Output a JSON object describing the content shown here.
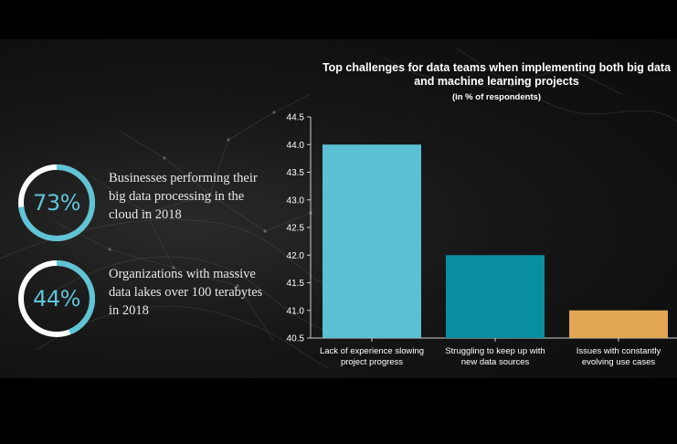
{
  "stats": [
    {
      "value": "73%",
      "fraction": 0.73,
      "description": "Businesses performing their big data processing in the cloud in 2018"
    },
    {
      "value": "44%",
      "fraction": 0.44,
      "description": "Organizations with massive data lakes over 100 terabytes in 2018"
    }
  ],
  "colors": {
    "ring_accent": "#5fc4d6",
    "ring_track": "#ffffff",
    "axis": "#cfcfcf"
  },
  "chart_data": {
    "type": "bar",
    "title": "Top challenges for data teams when implementing both big data and machine learning projects",
    "subtitle": "(in % of respondents)",
    "categories": [
      [
        "Lack of experience slowing",
        "project progress"
      ],
      [
        "Struggling to keep up with",
        "new data sources"
      ],
      [
        "Issues with constantly",
        "evolving use cases"
      ]
    ],
    "values": [
      44.0,
      42.0,
      41.0
    ],
    "bar_colors": [
      "#5cc0d4",
      "#0a8fa0",
      "#e3a654"
    ],
    "ylim": [
      40.5,
      44.5
    ],
    "yticks": [
      "40.5",
      "41.0",
      "41.5",
      "42.0",
      "42.5",
      "43.0",
      "43.5",
      "44.0",
      "44.5"
    ],
    "grid": false,
    "legend": "none"
  }
}
